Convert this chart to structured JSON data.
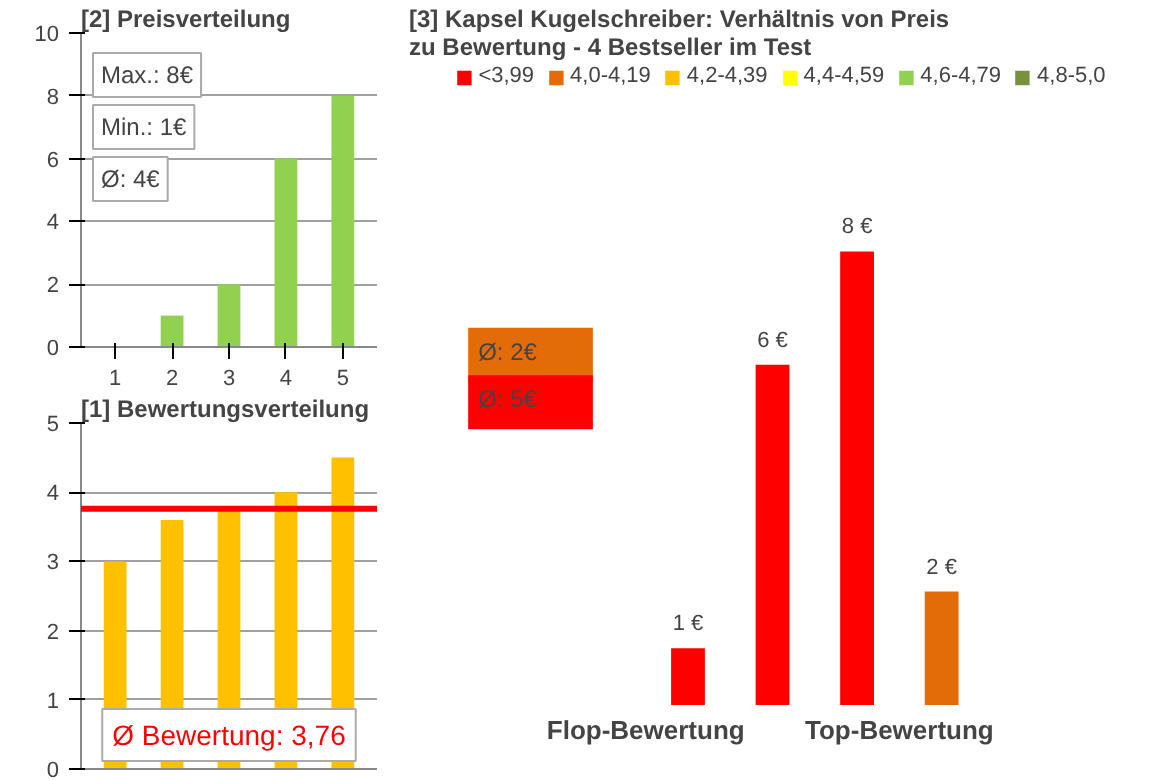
{
  "chart_data": [
    {
      "type": "bar",
      "title": "[2]   Preisverteilung",
      "categories": [
        "1",
        "2",
        "3",
        "4",
        "5"
      ],
      "values": [
        0,
        1,
        2,
        6,
        8
      ],
      "color": "#92d050",
      "ylim": [
        0,
        10
      ],
      "yticks": [
        0,
        2,
        4,
        6,
        8,
        10
      ],
      "grid": "y",
      "annotations": [
        "Max.: 8€",
        "Min.: 1€",
        "Ø: 4€"
      ]
    },
    {
      "type": "bar",
      "title": "[3]   Kapsel Kugelschreiber: Verhältnis von Preis zu Bewertung - 4 Bestseller im Test",
      "categories": [
        null,
        null,
        null,
        null
      ],
      "legend": "top",
      "tick_labels": false,
      "stacked": true,
      "series": [
        {
          "name": "<3,99",
          "color": "#ff0000",
          "values": [
            1,
            6,
            8,
            null
          ],
          "value_labels": [
            "1 €",
            "6 €",
            "8 €",
            null
          ]
        },
        {
          "name": "4,0-4,19",
          "color": "#e36c09",
          "values": [
            null,
            null,
            null,
            2
          ],
          "value_labels": [
            null,
            null,
            null,
            "2 €"
          ]
        },
        {
          "name": "4,2-4,39",
          "color": "#ffc000",
          "values": [
            null,
            null,
            null,
            null
          ]
        },
        {
          "name": "4,4-4,59",
          "color": "#ffff00",
          "values": [
            null,
            null,
            null,
            null
          ]
        },
        {
          "name": "4,6-4,79",
          "color": "#92d050",
          "values": [
            null,
            null,
            null,
            null
          ]
        },
        {
          "name": "4,8-5,0",
          "color": "#76923c",
          "values": [
            null,
            null,
            null,
            null
          ]
        }
      ],
      "annotations": [
        "Ø: 2€",
        "Ø: 5€",
        "Flop-Bewertung",
        "Top-Bewertung"
      ]
    },
    {
      "type": "bar",
      "title": "[1]   Bewertungsverteilung",
      "categories": [
        null,
        null,
        null,
        null,
        null
      ],
      "values": [
        3.0,
        3.6,
        3.75,
        4.0,
        4.5
      ],
      "color": "#ffc000",
      "ylim": [
        0,
        5
      ],
      "yticks": [
        0,
        1,
        2,
        3,
        4,
        5
      ],
      "grid": "y",
      "tick_labels": "y",
      "ref_lines": [
        {
          "axis": "y",
          "value": 3.76,
          "color": "#ff0000"
        }
      ],
      "annotations": [
        "Ø Bewertung: 3,76"
      ]
    }
  ]
}
